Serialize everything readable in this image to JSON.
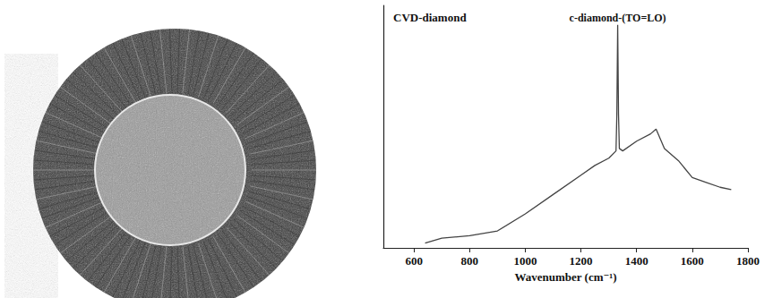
{
  "chart_data": {
    "type": "line",
    "title": "CVD-diamond",
    "xlabel": "Wavenumber (cm⁻¹)",
    "x": [
      640,
      700,
      800,
      900,
      1000,
      1100,
      1200,
      1250,
      1300,
      1326,
      1329,
      1332,
      1335,
      1338,
      1350,
      1400,
      1450,
      1470,
      1500,
      1550,
      1600,
      1650,
      1700,
      1740
    ],
    "values": [
      2,
      4,
      5,
      7,
      14,
      22,
      30,
      34,
      37,
      40,
      55,
      92,
      55,
      41,
      40,
      44,
      47,
      49,
      41,
      36,
      29,
      27,
      25,
      24
    ],
    "color": "#444444",
    "xlim": [
      490,
      1800
    ],
    "xticks": [
      600,
      800,
      1000,
      1200,
      1400,
      1600,
      1800
    ],
    "ylim": [
      0,
      100
    ],
    "tick_labels": "x",
    "grid": false,
    "annotations": [
      {
        "text": "c-diamond-(TO=LO)",
        "x": 1332,
        "y": 92
      }
    ]
  }
}
